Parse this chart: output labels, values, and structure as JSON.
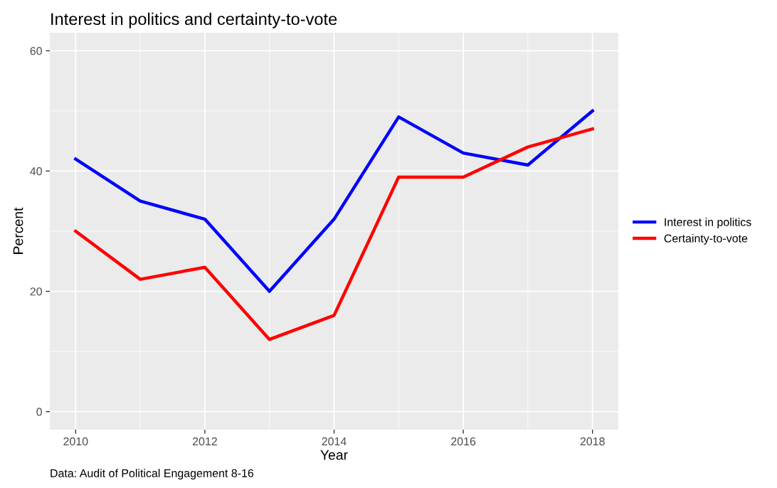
{
  "chart_data": {
    "type": "line",
    "title": "Interest in politics and certainty-to-vote",
    "xlabel": "Year",
    "ylabel": "Percent",
    "annotations": [
      "Data: Audit of Political Engagement 8-16"
    ],
    "x": [
      2010,
      2011,
      2012,
      2013,
      2014,
      2015,
      2016,
      2017,
      2018
    ],
    "series": [
      {
        "name": "Interest in politics",
        "color": "#0000ff",
        "values": [
          42,
          35,
          32,
          20,
          32,
          49,
          43,
          41,
          50
        ]
      },
      {
        "name": "Certainty-to-vote",
        "color": "#ff0000",
        "values": [
          30,
          22,
          24,
          12,
          16,
          39,
          39,
          44,
          47
        ]
      }
    ],
    "xlim": [
      2009.6,
      2018.4
    ],
    "xticks": [
      2010,
      2012,
      2014,
      2016,
      2018
    ],
    "ylim": [
      -3,
      63
    ],
    "yticks": [
      0,
      20,
      40,
      60
    ],
    "grid": true,
    "legend": "right",
    "marker": "none",
    "line_style": "solid"
  }
}
